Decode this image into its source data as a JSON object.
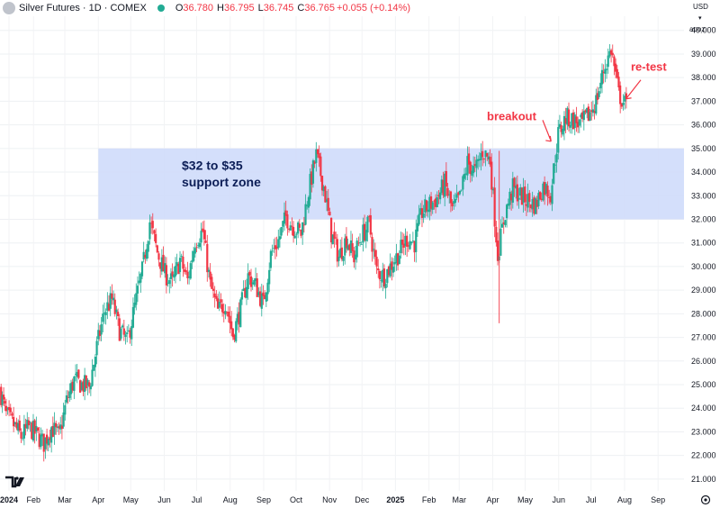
{
  "header": {
    "symbol_title": "Silver Futures · 1D · COMEX",
    "open_label": "O",
    "open_value": "36.780",
    "high_label": "H",
    "high_value": "36.795",
    "low_label": "L",
    "low_value": "36.745",
    "close_label": "C",
    "close_value": "36.765",
    "change_value": "+0.055 (+0.14%)"
  },
  "right_panel": {
    "currency": "USD",
    "currency_icon": "chevron-down-icon",
    "mode": "apoz"
  },
  "branding": {
    "logo_text": "TV",
    "logo_icon": "tradingview-logo-icon"
  },
  "settings_icon": "gear-icon",
  "colors": {
    "up": "#22ab94",
    "down": "#f23645",
    "zone": "#cfdcfb",
    "annotation": "#f23645",
    "zone_text": "#0c1e57"
  },
  "chart_data": {
    "type": "candlestick",
    "title": "",
    "xlabel": "",
    "ylabel": "",
    "ylim": [
      20.5,
      40.6
    ],
    "y_ticks": [
      "21.000",
      "22.000",
      "23.000",
      "24.000",
      "25.000",
      "26.000",
      "27.000",
      "28.000",
      "29.000",
      "30.000",
      "31.000",
      "32.000",
      "33.000",
      "34.000",
      "35.000",
      "36.000",
      "37.000",
      "38.000",
      "39.000",
      "40.000"
    ],
    "x_ticks": [
      "2024",
      "Feb",
      "Mar",
      "Apr",
      "May",
      "Jun",
      "Jul",
      "Aug",
      "Sep",
      "Oct",
      "Nov",
      "Dec",
      "2025",
      "Feb",
      "Mar",
      "Apr",
      "May",
      "Jun",
      "Jul",
      "Aug",
      "Sep"
    ],
    "grid": true,
    "zone": {
      "low": 32,
      "high": 35,
      "label_line1": "$32 to $35",
      "label_line2": "support zone"
    },
    "annotations": [
      {
        "text": "breakout",
        "date": "2025-05-20",
        "price": 36.5
      },
      {
        "text": "re-test",
        "date": "2025-07-28",
        "price": 38.4
      }
    ],
    "series_close": [
      [
        "2024-01-02",
        24.8
      ],
      [
        "2024-01-08",
        23.7
      ],
      [
        "2024-01-15",
        23.3
      ],
      [
        "2024-01-22",
        22.8
      ],
      [
        "2024-01-29",
        23.2
      ],
      [
        "2024-02-05",
        22.9
      ],
      [
        "2024-02-12",
        22.5
      ],
      [
        "2024-02-19",
        23.2
      ],
      [
        "2024-02-26",
        22.8
      ],
      [
        "2024-03-04",
        24.3
      ],
      [
        "2024-03-11",
        25.2
      ],
      [
        "2024-03-18",
        25.0
      ],
      [
        "2024-03-25",
        24.9
      ],
      [
        "2024-04-01",
        26.6
      ],
      [
        "2024-04-08",
        28.1
      ],
      [
        "2024-04-15",
        28.6
      ],
      [
        "2024-04-22",
        27.3
      ],
      [
        "2024-04-29",
        26.8
      ],
      [
        "2024-05-06",
        28.3
      ],
      [
        "2024-05-13",
        29.8
      ],
      [
        "2024-05-20",
        31.9
      ],
      [
        "2024-05-27",
        30.6
      ],
      [
        "2024-06-03",
        29.7
      ],
      [
        "2024-06-10",
        29.3
      ],
      [
        "2024-06-17",
        30.3
      ],
      [
        "2024-06-24",
        29.4
      ],
      [
        "2024-07-01",
        31.1
      ],
      [
        "2024-07-08",
        31.5
      ],
      [
        "2024-07-15",
        29.2
      ],
      [
        "2024-07-22",
        28.1
      ],
      [
        "2024-07-29",
        28.5
      ],
      [
        "2024-08-05",
        27.1
      ],
      [
        "2024-08-12",
        28.2
      ],
      [
        "2024-08-19",
        29.6
      ],
      [
        "2024-08-26",
        29.2
      ],
      [
        "2024-09-02",
        28.4
      ],
      [
        "2024-09-09",
        30.5
      ],
      [
        "2024-09-16",
        31.1
      ],
      [
        "2024-09-23",
        32.1
      ],
      [
        "2024-09-30",
        31.7
      ],
      [
        "2024-10-07",
        31.4
      ],
      [
        "2024-10-14",
        33.2
      ],
      [
        "2024-10-21",
        34.7
      ],
      [
        "2024-10-28",
        33.4
      ],
      [
        "2024-11-04",
        31.4
      ],
      [
        "2024-11-11",
        30.4
      ],
      [
        "2024-11-18",
        31.2
      ],
      [
        "2024-11-25",
        30.4
      ],
      [
        "2024-12-02",
        31.3
      ],
      [
        "2024-12-09",
        31.8
      ],
      [
        "2024-12-16",
        29.8
      ],
      [
        "2024-12-23",
        29.6
      ],
      [
        "2024-12-30",
        30.1
      ],
      [
        "2025-01-06",
        30.6
      ],
      [
        "2025-01-13",
        31.2
      ],
      [
        "2025-01-20",
        31.0
      ],
      [
        "2025-01-27",
        32.3
      ],
      [
        "2025-02-03",
        32.6
      ],
      [
        "2025-02-10",
        32.9
      ],
      [
        "2025-02-17",
        33.5
      ],
      [
        "2025-02-24",
        32.4
      ],
      [
        "2025-03-03",
        32.9
      ],
      [
        "2025-03-10",
        34.4
      ],
      [
        "2025-03-17",
        34.0
      ],
      [
        "2025-03-24",
        34.9
      ],
      [
        "2025-03-31",
        34.5
      ],
      [
        "2025-04-07",
        30.5
      ],
      [
        "2025-04-14",
        32.3
      ],
      [
        "2025-04-21",
        33.3
      ],
      [
        "2025-04-28",
        33.0
      ],
      [
        "2025-05-05",
        32.8
      ],
      [
        "2025-05-12",
        32.6
      ],
      [
        "2025-05-19",
        33.4
      ],
      [
        "2025-05-26",
        33.1
      ],
      [
        "2025-06-02",
        35.6
      ],
      [
        "2025-06-09",
        36.3
      ],
      [
        "2025-06-16",
        36.2
      ],
      [
        "2025-06-23",
        36.0
      ],
      [
        "2025-06-30",
        36.4
      ],
      [
        "2025-07-07",
        37.0
      ],
      [
        "2025-07-14",
        38.3
      ],
      [
        "2025-07-21",
        39.2
      ],
      [
        "2025-07-28",
        37.3
      ],
      [
        "2025-08-04",
        36.77
      ]
    ]
  }
}
